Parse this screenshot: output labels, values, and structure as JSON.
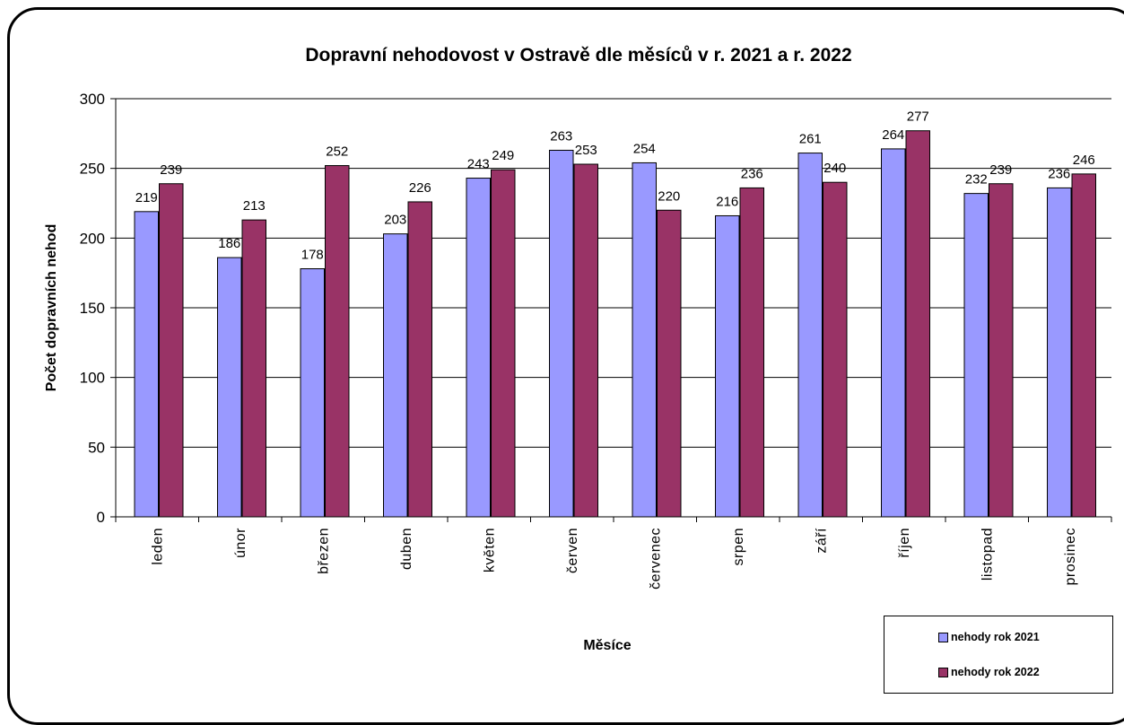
{
  "chart_data": {
    "type": "bar",
    "title": "Dopravní nehodovost v Ostravě dle měsíců v r. 2021 a r. 2022",
    "xlabel": "Měsíce",
    "ylabel": "Počet dopravních nehod",
    "ylim": [
      0,
      300
    ],
    "yticks": [
      0,
      50,
      100,
      150,
      200,
      250,
      300
    ],
    "grid": true,
    "legend_position": "bottom-right",
    "categories": [
      "leden",
      "únor",
      "březen",
      "duben",
      "květen",
      "červen",
      "červenec",
      "srpen",
      "září",
      "říjen",
      "listopad",
      "prosinec"
    ],
    "series": [
      {
        "name": "nehody rok 2021",
        "color": "#9999ff",
        "values": [
          219,
          186,
          178,
          203,
          243,
          263,
          254,
          216,
          261,
          264,
          232,
          236
        ]
      },
      {
        "name": "nehody rok 2022",
        "color": "#993366",
        "values": [
          239,
          213,
          252,
          226,
          249,
          253,
          220,
          236,
          240,
          277,
          239,
          246
        ]
      }
    ]
  }
}
